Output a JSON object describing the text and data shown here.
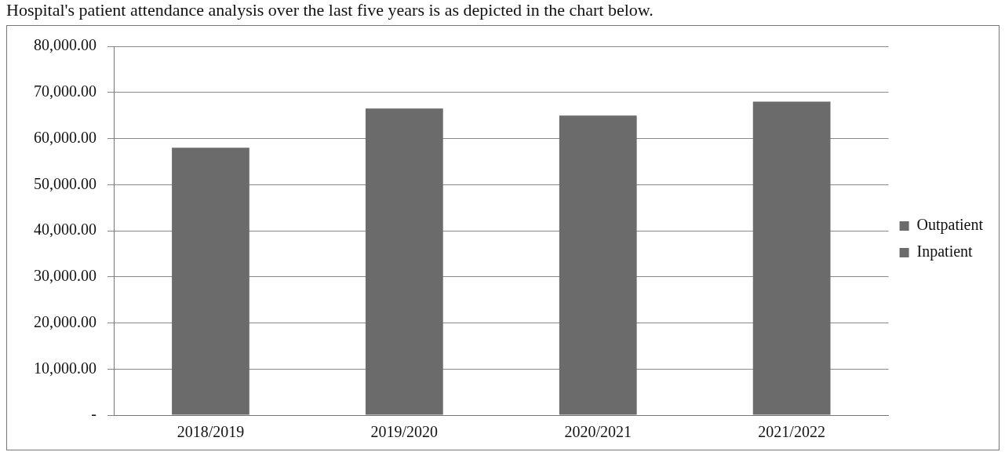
{
  "chart_data": {
    "type": "bar",
    "title": "Hospital's patient attendance analysis over the last five years is as depicted in the chart below.",
    "categories": [
      "2018/2019",
      "2019/2020",
      "2020/2021",
      "2021/2022"
    ],
    "series": [
      {
        "name": "Outpatient",
        "color": "#6b6b6b",
        "values": [
          58000,
          66500,
          65000,
          68000
        ]
      },
      {
        "name": "Inpatient",
        "color": "#6b6b6b",
        "values": [
          null,
          null,
          null,
          null
        ]
      }
    ],
    "stacked": true,
    "ylim": [
      0,
      80000
    ],
    "yticks": [
      {
        "value": 0,
        "label": "-"
      },
      {
        "value": 10000,
        "label": "10,000.00"
      },
      {
        "value": 20000,
        "label": "20,000.00"
      },
      {
        "value": 30000,
        "label": "30,000.00"
      },
      {
        "value": 40000,
        "label": "40,000.00"
      },
      {
        "value": 50000,
        "label": "50,000.00"
      },
      {
        "value": 60000,
        "label": "60,000.00"
      },
      {
        "value": 70000,
        "label": "70,000.00"
      },
      {
        "value": 80000,
        "label": "80,000.00"
      }
    ],
    "grid": "y",
    "legend": "right"
  }
}
